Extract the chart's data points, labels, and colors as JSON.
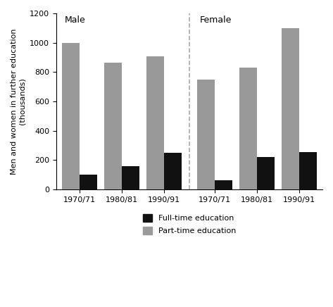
{
  "male_labels": [
    "1970/71",
    "1980/81",
    "1990/91"
  ],
  "female_labels": [
    "1970/71",
    "1980/81",
    "1990/91"
  ],
  "male_fulltime": [
    100,
    160,
    250
  ],
  "male_parttime": [
    1000,
    865,
    905
  ],
  "female_fulltime": [
    65,
    220,
    255
  ],
  "female_parttime": [
    750,
    830,
    1100
  ],
  "ylabel": "Men and women in further education\n(thousands)",
  "ylim": [
    0,
    1200
  ],
  "yticks": [
    0,
    200,
    400,
    600,
    800,
    1000,
    1200
  ],
  "fulltime_color": "#111111",
  "parttime_color": "#999999",
  "male_label": "Male",
  "female_label": "Female",
  "legend_fulltime": "Full-time education",
  "legend_parttime": "Part-time education",
  "bar_width": 0.42,
  "background_color": "#ffffff"
}
